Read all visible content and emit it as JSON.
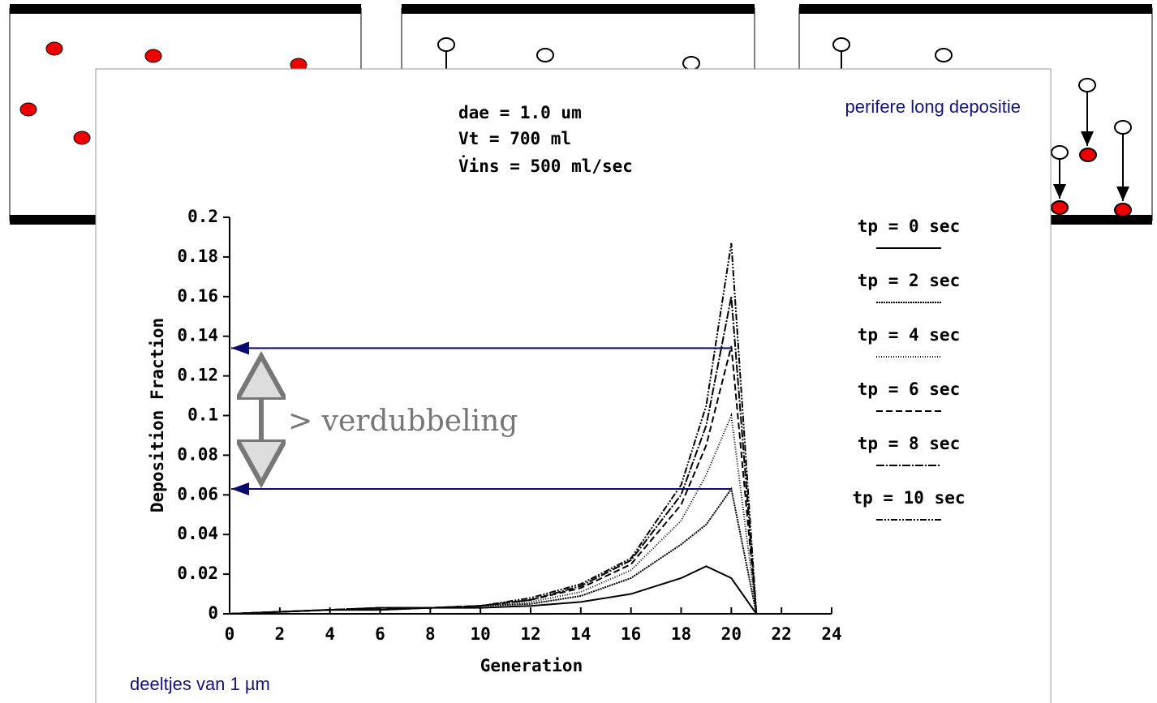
{
  "chart_data": {
    "type": "line",
    "header_lines": [
      "dae = 1.0 um",
      "Vt = 700 ml",
      "V̇ins = 500 ml/sec"
    ],
    "x_label": "Generation",
    "y_label": "Deposition Fraction",
    "x": [
      0,
      2,
      4,
      6,
      8,
      10,
      12,
      14,
      16,
      18,
      19,
      20,
      21
    ],
    "series": [
      {
        "name": "tp = 0 sec",
        "color": "#000000",
        "dash": "none",
        "values": [
          0,
          0.001,
          0.002,
          0.002,
          0.003,
          0.003,
          0.004,
          0.006,
          0.01,
          0.018,
          0.024,
          0.018,
          0
        ]
      },
      {
        "name": "tp = 2 sec",
        "color": "#000000",
        "dash": "2,1",
        "values": [
          0,
          0.001,
          0.002,
          0.002,
          0.003,
          0.004,
          0.005,
          0.009,
          0.018,
          0.035,
          0.045,
          0.063,
          0
        ]
      },
      {
        "name": "tp = 4 sec",
        "color": "#000000",
        "dash": "1,2",
        "values": [
          0,
          0.001,
          0.002,
          0.003,
          0.003,
          0.004,
          0.006,
          0.011,
          0.022,
          0.047,
          0.07,
          0.1,
          0
        ]
      },
      {
        "name": "tp = 6 sec",
        "color": "#000000",
        "dash": "8,4",
        "values": [
          0,
          0.001,
          0.002,
          0.003,
          0.003,
          0.004,
          0.007,
          0.013,
          0.025,
          0.055,
          0.085,
          0.135,
          0
        ]
      },
      {
        "name": "tp = 8 sec",
        "color": "#000000",
        "dash": "10,2,2,2",
        "values": [
          0,
          0.001,
          0.002,
          0.003,
          0.003,
          0.004,
          0.007,
          0.014,
          0.027,
          0.06,
          0.095,
          0.16,
          0
        ]
      },
      {
        "name": "tp = 10 sec",
        "color": "#000000",
        "dash": "8,2,2,2,2,2",
        "values": [
          0,
          0.001,
          0.002,
          0.003,
          0.003,
          0.004,
          0.008,
          0.015,
          0.028,
          0.065,
          0.105,
          0.187,
          0
        ]
      }
    ],
    "xlim": [
      0,
      24
    ],
    "xticks": [
      0,
      2,
      4,
      6,
      8,
      10,
      12,
      14,
      16,
      18,
      20,
      22,
      24
    ],
    "ylim": [
      0,
      0.2
    ],
    "yticks": [
      0,
      0.02,
      0.04,
      0.06,
      0.08,
      0.1,
      0.12,
      0.14,
      0.16,
      0.18,
      0.2
    ],
    "reference_lines": [
      0.134,
      0.063
    ],
    "reference_color": "#0a0a6e",
    "annotation": "> verdubbeling",
    "corner_title": "perifere long depositie",
    "footnote": "deeltjes van 1 µm"
  }
}
